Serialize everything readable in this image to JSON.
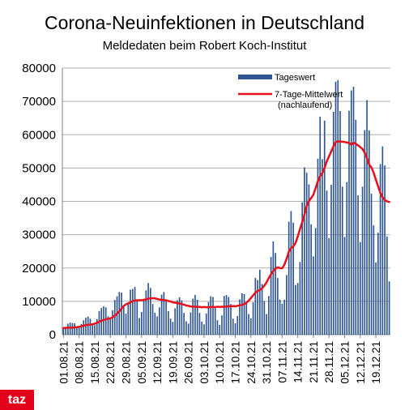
{
  "chart_data": {
    "type": "bar",
    "title": "Corona-Neuinfektionen in Deutschland",
    "subtitle": "Meldedaten beim Robert Koch-Institut",
    "xlabel": "",
    "ylabel": "",
    "ylim": [
      0,
      80000
    ],
    "yticks": [
      0,
      10000,
      20000,
      30000,
      40000,
      50000,
      60000,
      70000,
      80000
    ],
    "ytick_labels": [
      "0",
      "10000",
      "20000",
      "30000",
      "40000",
      "50000",
      "60000",
      "70000",
      "80000"
    ],
    "xtick_labels": [
      "01.08.21",
      "08.08.21",
      "15.08.21",
      "22.08.21",
      "29.08.21",
      "05.09.21",
      "12.09.21",
      "19.09.21",
      "26.09.21",
      "03.10.21",
      "10.10.21",
      "17.10.21",
      "24.10.21",
      "31.10.21",
      "07.11.21",
      "14.11.21",
      "21.11.21",
      "28.11.21",
      "05.12.21",
      "12.12.21",
      "19.12.21"
    ],
    "grid": true,
    "legend_position": "top-right",
    "start_date": "01.08.21",
    "series": [
      {
        "name": "Tageswert",
        "type": "bar",
        "color": "#2e5590",
        "values": [
          1900,
          2200,
          3300,
          3600,
          3500,
          3400,
          2000,
          2100,
          3200,
          4300,
          5100,
          5400,
          4800,
          3100,
          2900,
          4700,
          7100,
          8000,
          8500,
          8200,
          5500,
          4600,
          7300,
          10400,
          11500,
          12800,
          12600,
          8400,
          6300,
          9300,
          13500,
          13700,
          14300,
          10300,
          5000,
          6800,
          10500,
          13300,
          15500,
          14000,
          9200,
          6600,
          5500,
          8200,
          12000,
          12800,
          10400,
          7100,
          4800,
          3800,
          7900,
          10300,
          11200,
          10300,
          6500,
          4000,
          3300,
          6700,
          10800,
          11900,
          10500,
          6500,
          3900,
          3100,
          6300,
          9800,
          11500,
          11300,
          8100,
          4300,
          2900,
          5800,
          11600,
          11900,
          11300,
          9200,
          4800,
          3400,
          5600,
          10600,
          12400,
          12200,
          9900,
          6200,
          4900,
          9700,
          17000,
          16400,
          19500,
          15200,
          10100,
          6200,
          11600,
          23300,
          28000,
          24500,
          17000,
          10500,
          9300,
          10500,
          17900,
          33900,
          37100,
          33600,
          14900,
          15500,
          21800,
          39700,
          50200,
          48600,
          45100,
          33100,
          23500,
          32000,
          52800,
          65400,
          52700,
          64200,
          43200,
          29000,
          45000,
          66900,
          75900,
          76400,
          67100,
          44400,
          29300,
          45800,
          67200,
          73300,
          74400,
          64500,
          41800,
          27800,
          44400,
          61400,
          70400,
          61300,
          42300,
          32800,
          21700,
          30600,
          51200,
          56500,
          50800,
          29500,
          16000
        ]
      },
      {
        "name": "7-Tage-Mittelwert (nachlaufend)",
        "type": "line",
        "color": "#e8101c",
        "values": [
          2000,
          2050,
          2100,
          2100,
          2100,
          2150,
          2250,
          2350,
          2500,
          2700,
          2850,
          2950,
          3050,
          3100,
          3300,
          3550,
          3850,
          4200,
          4400,
          4600,
          4750,
          4900,
          5200,
          5700,
          6300,
          7000,
          7800,
          8600,
          9100,
          9400,
          9700,
          10050,
          10250,
          10350,
          10350,
          10350,
          10450,
          10600,
          10800,
          10900,
          10900,
          10900,
          10700,
          10550,
          10450,
          10400,
          10300,
          10100,
          9950,
          9700,
          9600,
          9450,
          9350,
          9200,
          9000,
          8750,
          8650,
          8450,
          8400,
          8450,
          8300,
          8350,
          8200,
          8300,
          8250,
          8200,
          8300,
          8350,
          8250,
          8400,
          8300,
          8350,
          8400,
          8450,
          8500,
          8500,
          8600,
          8500,
          8650,
          8800,
          8900,
          9200,
          9600,
          10200,
          11000,
          11800,
          12600,
          13100,
          13400,
          13900,
          14700,
          15700,
          17000,
          18100,
          19100,
          19800,
          20200,
          20000,
          19900,
          21000,
          22800,
          24900,
          26000,
          26500,
          27500,
          29500,
          31700,
          33800,
          36100,
          38600,
          40100,
          41000,
          42000,
          44000,
          46000,
          47500,
          48500,
          50000,
          52000,
          53500,
          55000,
          56500,
          57800,
          58000,
          57900,
          57900,
          57800,
          57700,
          57500,
          57000,
          57600,
          57300,
          56800,
          56300,
          55700,
          54600,
          53000,
          51000,
          50200,
          48600,
          46500,
          44500,
          42500,
          41200,
          40400,
          40000,
          39800
        ]
      }
    ]
  },
  "legend": [
    {
      "label": "Tageswert"
    },
    {
      "label": "7-Tage-Mittelwert"
    },
    {
      "label": "(nachlaufend)"
    }
  ],
  "logo": {
    "text": "taz"
  },
  "colors": {
    "bar": "#2e5590",
    "line": "#e8101c",
    "grid": "#b0b0b0",
    "axis": "#808080",
    "logo": "#e2001a"
  }
}
